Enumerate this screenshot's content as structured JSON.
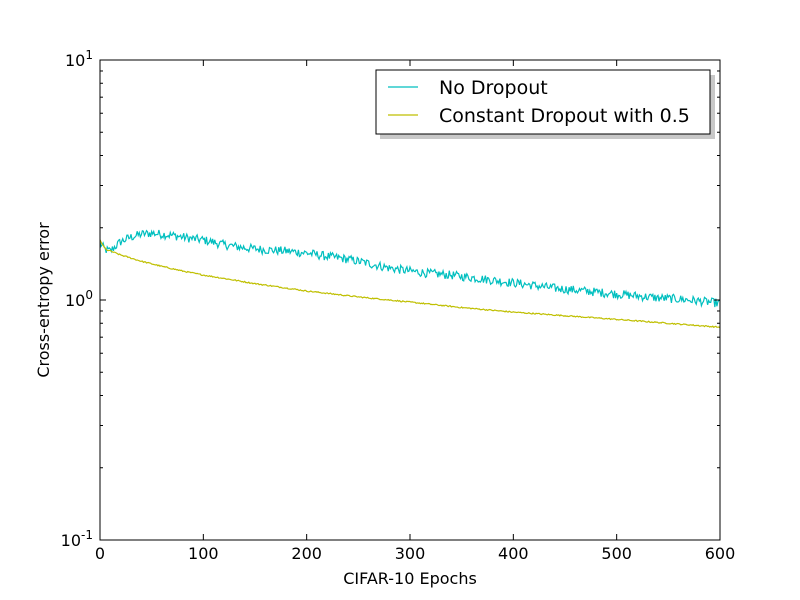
{
  "chart_data": {
    "type": "line",
    "title": "",
    "xlabel": "CIFAR-10 Epochs",
    "ylabel": "Cross-entropy error",
    "xlim": [
      0,
      600
    ],
    "ylim": [
      0.1,
      10
    ],
    "yscale": "log",
    "grid": false,
    "legend": "top-right",
    "x_ticks": [
      0,
      100,
      200,
      300,
      400,
      500,
      600
    ],
    "x_tick_labels": [
      "0",
      "100",
      "200",
      "300",
      "400",
      "500",
      "600"
    ],
    "y_ticks": [
      0.1,
      1,
      10
    ],
    "y_tick_bases": [
      "10",
      "10",
      "10"
    ],
    "y_tick_exponents": [
      "-1",
      "0",
      "1"
    ],
    "series": [
      {
        "name": "No Dropout",
        "color": "#00bfbf",
        "noisy": true,
        "x": [
          0,
          5,
          10,
          20,
          30,
          40,
          50,
          60,
          70,
          80,
          90,
          100,
          120,
          140,
          160,
          180,
          200,
          220,
          240,
          260,
          280,
          300,
          320,
          340,
          360,
          380,
          400,
          420,
          440,
          460,
          480,
          500,
          520,
          540,
          560,
          580,
          600
        ],
        "values": [
          1.72,
          1.62,
          1.6,
          1.75,
          1.83,
          1.88,
          1.9,
          1.88,
          1.86,
          1.83,
          1.8,
          1.78,
          1.7,
          1.65,
          1.62,
          1.6,
          1.57,
          1.52,
          1.48,
          1.42,
          1.36,
          1.32,
          1.29,
          1.27,
          1.24,
          1.21,
          1.18,
          1.15,
          1.12,
          1.1,
          1.08,
          1.06,
          1.04,
          1.02,
          1.01,
          0.99,
          0.97
        ]
      },
      {
        "name": "Constant Dropout with 0.5",
        "color": "#bfbf00",
        "noisy": false,
        "x": [
          0,
          3,
          6,
          10,
          20,
          40,
          60,
          80,
          100,
          150,
          200,
          250,
          300,
          350,
          400,
          450,
          500,
          550,
          600
        ],
        "values": [
          1.78,
          1.68,
          1.62,
          1.6,
          1.54,
          1.45,
          1.38,
          1.32,
          1.27,
          1.17,
          1.09,
          1.03,
          0.98,
          0.93,
          0.89,
          0.86,
          0.83,
          0.8,
          0.77
        ]
      }
    ]
  }
}
